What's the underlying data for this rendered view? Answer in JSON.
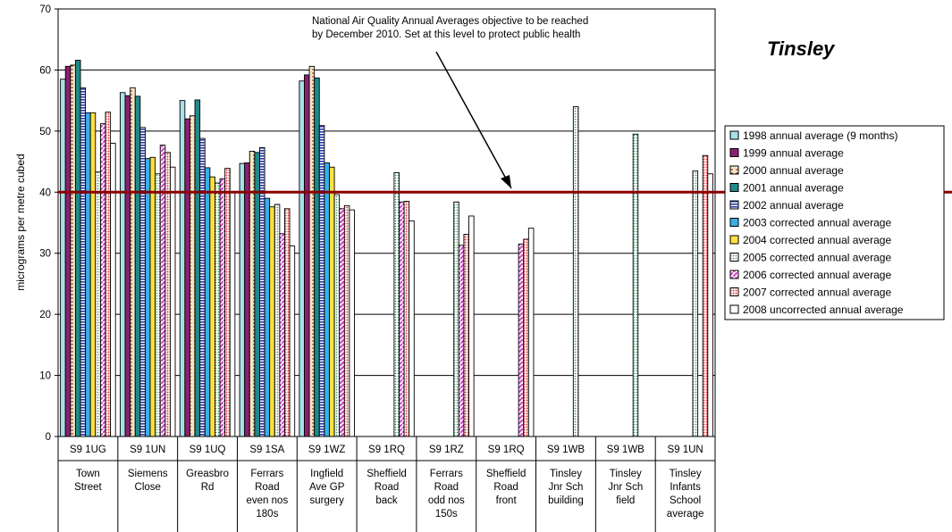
{
  "chart_data": {
    "type": "bar",
    "title": "Tinsley",
    "ylabel": "micrograms per metre cubed",
    "xlabel": "",
    "ylim": [
      0,
      70
    ],
    "yticks": [
      0,
      10,
      20,
      30,
      40,
      50,
      60,
      70
    ],
    "grid": true,
    "legend_position": "right",
    "objective_value": 40,
    "objective_color": "#8b0000",
    "annotation": [
      "National Air Quality Annual Averages objective to be reached",
      "by December 2010. Set at this level to protect public health"
    ],
    "categories": [
      {
        "code": "S9 1UG",
        "lines": [
          "Town",
          "Street"
        ]
      },
      {
        "code": "S9 1UN",
        "lines": [
          "Siemens",
          "Close"
        ]
      },
      {
        "code": "S9 1UQ",
        "lines": [
          "Greasbro",
          "Rd"
        ]
      },
      {
        "code": "S9 1SA",
        "lines": [
          "Ferrars",
          "Road",
          "even nos",
          "180s"
        ]
      },
      {
        "code": "S9 1WZ",
        "lines": [
          "Ingfield",
          "Ave GP",
          "surgery"
        ]
      },
      {
        "code": "S9 1RQ",
        "lines": [
          "Sheffield",
          "Road",
          "back"
        ]
      },
      {
        "code": "S9 1RZ",
        "lines": [
          "Ferrars",
          "Road",
          "odd nos",
          "150s"
        ]
      },
      {
        "code": "S9 1RQ",
        "lines": [
          "Sheffield",
          "Road",
          "front"
        ]
      },
      {
        "code": "S9 1WB",
        "lines": [
          "Tinsley",
          "Jnr Sch",
          "building"
        ]
      },
      {
        "code": "S9 1WB",
        "lines": [
          "Tinsley",
          "Jnr Sch",
          "field"
        ]
      },
      {
        "code": "S9 1UN",
        "lines": [
          "Tinsley",
          "Infants",
          "School",
          "average"
        ]
      }
    ],
    "series": [
      {
        "name": "1998 annual average (9 months)",
        "color": "#a8e0e8",
        "pattern": "plain",
        "values": [
          58.5,
          56.3,
          55.0,
          44.7,
          58.2,
          null,
          null,
          null,
          null,
          null,
          null
        ]
      },
      {
        "name": "1999 annual average",
        "color": "#8b2070",
        "pattern": "plain",
        "values": [
          60.6,
          55.8,
          52.0,
          44.8,
          59.2,
          null,
          null,
          null,
          null,
          null,
          null
        ]
      },
      {
        "name": "2000 annual average",
        "color": "#f5e6c8",
        "pattern": "dashes",
        "values": [
          60.8,
          57.1,
          52.5,
          46.7,
          60.6,
          null,
          null,
          null,
          null,
          null,
          null
        ]
      },
      {
        "name": "2001 annual average",
        "color": "#1e8a8a",
        "pattern": "plain",
        "values": [
          61.6,
          55.7,
          55.1,
          46.5,
          58.7,
          null,
          null,
          null,
          null,
          null,
          null
        ]
      },
      {
        "name": "2002 annual average",
        "color": "#2a3aa8",
        "pattern": "hlines",
        "values": [
          57.1,
          50.6,
          48.8,
          47.3,
          50.9,
          null,
          null,
          null,
          null,
          null,
          null
        ]
      },
      {
        "name": "2003 corrected annual average",
        "color": "#3aaee8",
        "pattern": "plain",
        "values": [
          53.0,
          45.5,
          44.0,
          39.0,
          44.8,
          null,
          null,
          null,
          null,
          null,
          null
        ]
      },
      {
        "name": "2004 corrected annual average",
        "color": "#ffe040",
        "pattern": "plain",
        "values": [
          53.0,
          45.7,
          42.5,
          37.6,
          44.1,
          null,
          null,
          null,
          null,
          null,
          null
        ]
      },
      {
        "name": "2005 corrected annual average",
        "color": "#d8f0e0",
        "pattern": "dots",
        "values": [
          43.3,
          43.0,
          41.5,
          38.0,
          39.6,
          43.2,
          38.4,
          null,
          54.0,
          49.5,
          43.5
        ]
      },
      {
        "name": "2006 corrected annual average",
        "color": "#d04ac8",
        "pattern": "diag",
        "values": [
          51.2,
          47.7,
          42.2,
          33.2,
          37.3,
          38.4,
          31.3,
          31.5,
          null,
          null,
          null
        ]
      },
      {
        "name": "2007 corrected annual average",
        "color": "#e83a3a",
        "pattern": "dots",
        "values": [
          53.1,
          46.5,
          43.9,
          37.3,
          37.8,
          38.5,
          33.1,
          32.3,
          null,
          null,
          46.0
        ]
      },
      {
        "name": "2008 uncorrected annual average",
        "color": "#ffffff",
        "pattern": "plain",
        "values": [
          48.0,
          44.1,
          40.0,
          31.2,
          37.1,
          35.3,
          36.1,
          34.1,
          null,
          null,
          43.0
        ]
      }
    ]
  }
}
